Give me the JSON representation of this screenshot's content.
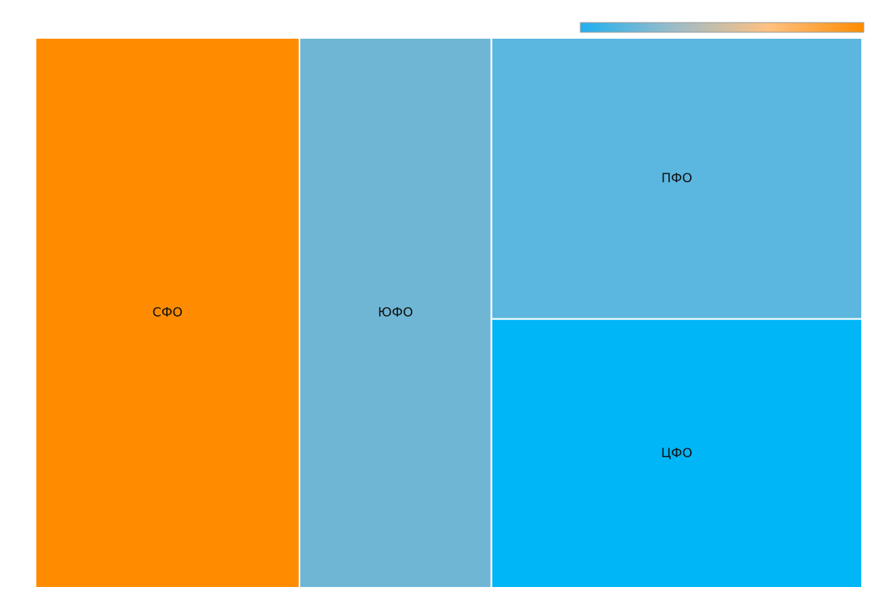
{
  "chart_data": {
    "type": "treemap",
    "categories": [
      "СФО",
      "ЮФО",
      "ПФО",
      "ЦФО"
    ],
    "values": [
      31.9,
      23.2,
      22.9,
      21.9
    ],
    "colors": [
      "#ff8c00",
      "#6fb6d5",
      "#5bb6e0",
      "#00b6f7"
    ],
    "colorscale": [
      "#1fb0f0",
      "#9dbcc8",
      "#ffc180",
      "#ff8c00"
    ]
  }
}
